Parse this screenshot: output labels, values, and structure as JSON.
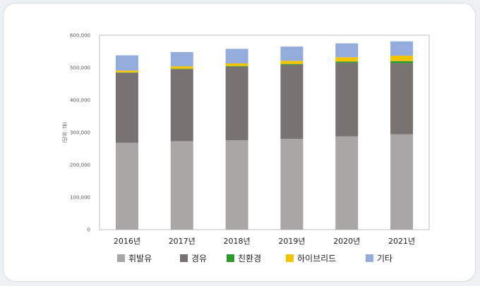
{
  "chart_data": {
    "type": "bar",
    "stacked": true,
    "ylabel": "(단위: 대)",
    "ylim": [
      0,
      600000
    ],
    "yticks": [
      0,
      100000,
      200000,
      300000,
      400000,
      500000,
      600000
    ],
    "ytick_labels": [
      "0",
      "100,000",
      "200,000",
      "300,000",
      "400,000",
      "500,000",
      "600,000"
    ],
    "categories": [
      "2016년",
      "2017년",
      "2018년",
      "2019년",
      "2020년",
      "2021년"
    ],
    "series": [
      {
        "name": "휘발유",
        "color": "#a9a6a6",
        "values": [
          268000,
          273000,
          276000,
          280000,
          288000,
          294000
        ]
      },
      {
        "name": "경유",
        "color": "#787271",
        "values": [
          216000,
          222000,
          227000,
          229000,
          227000,
          220000
        ]
      },
      {
        "name": "친환경",
        "color": "#2e9b2e",
        "values": [
          1000,
          1500,
          2000,
          2500,
          4000,
          6000
        ]
      },
      {
        "name": "하이브리드",
        "color": "#f5c400",
        "values": [
          6000,
          7500,
          8000,
          9500,
          13000,
          17000
        ]
      },
      {
        "name": "기타",
        "color": "#94acdc",
        "values": [
          47000,
          44000,
          45000,
          44000,
          43000,
          44000
        ]
      }
    ],
    "grid": false,
    "legend_position": "bottom"
  }
}
